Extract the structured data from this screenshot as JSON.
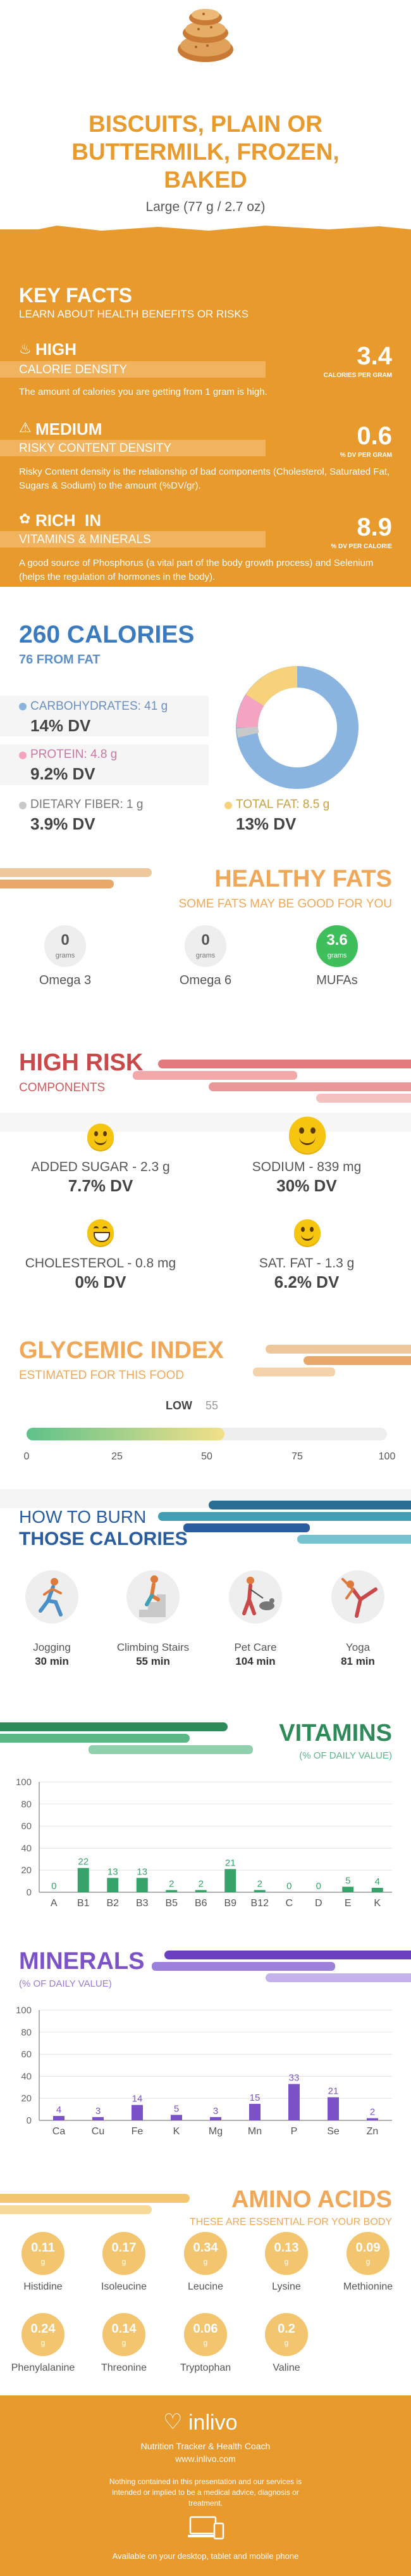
{
  "header": {
    "title_line1": "BISCUITS, PLAIN OR",
    "title_line2": "BUTTERMILK, FROZEN,",
    "title_line3": "BAKED",
    "serving": "Large (77 g / 2.7 oz)"
  },
  "key_facts": {
    "title": "KEY FACTS",
    "subtitle": "LEARN ABOUT HEALTH BENEFITS OR RISKS",
    "items": [
      {
        "level": "HIGH",
        "label": "CALORIE DENSITY",
        "value": "3.4",
        "unit": "CALORIES PER GRAM",
        "desc": "The amount of calories you are getting from 1 gram is high.",
        "icon": "flame-icon"
      },
      {
        "level": "MEDIUM",
        "label": "RISKY CONTENT DENSITY",
        "value": "0.6",
        "unit": "% DV PER GRAM",
        "desc": "Risky Content density is the relationship of bad components (Cholesterol, Saturated Fat, Sugars & Sodium) to the amount (%DV/gr).",
        "icon": "warning-icon"
      },
      {
        "level": "RICH  IN",
        "label": "VITAMINS & MINERALS",
        "value": "8.9",
        "unit": "% DV PER CALORIE",
        "desc": "A good source of Phosphorus (a vital part of the body growth process) and Selenium (helps the regulation of hormones in the body).",
        "icon": "leaf-icon"
      }
    ]
  },
  "calories": {
    "title": "260 CALORIES",
    "from_fat": "76 FROM FAT",
    "carbs_label": "CARBOHYDRATES: 41 g",
    "carbs_dv": "14% DV",
    "protein_label": "PROTEIN: 4.8 g",
    "protein_dv": "9.2% DV",
    "fiber_label": "DIETARY FIBER: 1 g",
    "fiber_dv": "3.9% DV",
    "fat_label": "TOTAL FAT: 8.5 g",
    "fat_dv": "13% DV",
    "colors": {
      "carbs": "#8ab4e0",
      "protein": "#f4a3c1",
      "fiber": "#c9c9c9",
      "fat": "#f7d27a"
    }
  },
  "healthy_fats": {
    "title": "HEALTHY FATS",
    "subtitle": "SOME FATS MAY BE GOOD FOR YOU",
    "items": [
      {
        "value": "0",
        "unit": "grams",
        "label": "Omega 3"
      },
      {
        "value": "0",
        "unit": "grams",
        "label": "Omega 6"
      },
      {
        "value": "3.6",
        "unit": "grams",
        "label": "MUFAs"
      }
    ]
  },
  "high_risk": {
    "title": "HIGH RISK",
    "subtitle": "COMPONENTS",
    "items": [
      {
        "label": "ADDED SUGAR - 2.3 g",
        "dv": "7.7% DV",
        "icon": "smile-icon"
      },
      {
        "label": "SODIUM - 839 mg",
        "dv": "30% DV",
        "icon": "neutral-face-icon"
      },
      {
        "label": "CHOLESTEROL - 0.8 mg",
        "dv": "0% DV",
        "icon": "grin-icon"
      },
      {
        "label": "SAT. FAT - 1.3 g",
        "dv": "6.2% DV",
        "icon": "smile-icon"
      }
    ]
  },
  "glycemic": {
    "title": "GLYCEMIC INDEX",
    "subtitle": "ESTIMATED FOR THIS FOOD",
    "level": "LOW",
    "value": "55",
    "ticks": [
      "0",
      "25",
      "50",
      "75",
      "100"
    ]
  },
  "burn": {
    "title_line1": "HOW TO BURN",
    "title_line2": "THOSE CALORIES",
    "items": [
      {
        "label": "Jogging",
        "time": "30 min",
        "icon": "jogging-icon"
      },
      {
        "label": "Climbing Stairs",
        "time": "55 min",
        "icon": "stairs-icon"
      },
      {
        "label": "Pet Care",
        "time": "104 min",
        "icon": "pet-care-icon"
      },
      {
        "label": "Yoga",
        "time": "81 min",
        "icon": "yoga-icon"
      }
    ]
  },
  "chart_data": [
    {
      "type": "bar",
      "title": "VITAMINS",
      "subtitle": "(% OF DAILY VALUE)",
      "categories": [
        "A",
        "B1",
        "B2",
        "B3",
        "B5",
        "B6",
        "B9",
        "B12",
        "C",
        "D",
        "E",
        "K"
      ],
      "values": [
        0,
        22,
        13,
        13,
        2,
        2,
        21,
        2,
        0,
        0,
        5,
        4
      ],
      "ylim": [
        0,
        100
      ],
      "yticks": [
        "0",
        "20",
        "40",
        "60",
        "80",
        "100"
      ],
      "color": "#36a36a"
    },
    {
      "type": "bar",
      "title": "MINERALS",
      "subtitle": "(% OF DAILY VALUE)",
      "categories": [
        "Ca",
        "Cu",
        "Fe",
        "K",
        "Mg",
        "Mn",
        "P",
        "Se",
        "Zn"
      ],
      "values": [
        4,
        3,
        14,
        5,
        3,
        15,
        33,
        21,
        2
      ],
      "ylim": [
        0,
        100
      ],
      "yticks": [
        "0",
        "20",
        "40",
        "60",
        "80",
        "100"
      ],
      "color": "#7b52c8"
    }
  ],
  "amino": {
    "title": "AMINO ACIDS",
    "subtitle": "THESE ARE ESSENTIAL FOR YOUR BODY",
    "unit": "g",
    "items": [
      {
        "value": "0.11",
        "label": "Histidine"
      },
      {
        "value": "0.17",
        "label": "Isoleucine"
      },
      {
        "value": "0.34",
        "label": "Leucine"
      },
      {
        "value": "0.13",
        "label": "Lysine"
      },
      {
        "value": "0.09",
        "label": "Methionine"
      },
      {
        "value": "0.24",
        "label": "Phenylalanine"
      },
      {
        "value": "0.14",
        "label": "Threonine"
      },
      {
        "value": "0.06",
        "label": "Tryptophan"
      },
      {
        "value": "0.2",
        "label": "Valine"
      }
    ]
  },
  "footer": {
    "brand": "inlivo",
    "tagline": "Nutrition Tracker & Health Coach",
    "url": "www.inlivo.com",
    "disclaimer": "Nothing contained in this presentation and our services is intended or implied to be a medical advice, diagnosis or treatment.",
    "available": "Available on your desktop, tablet and mobile phone"
  }
}
